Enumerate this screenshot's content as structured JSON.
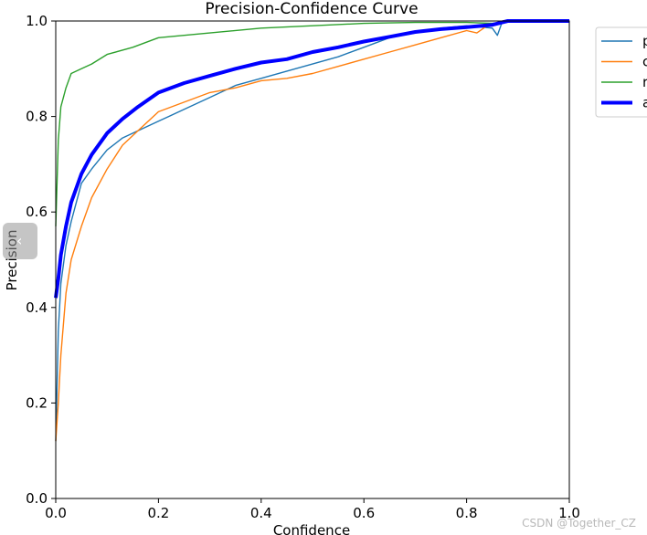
{
  "chart_data": {
    "type": "line",
    "title": "Precision-Confidence Curve",
    "xlabel": "Confidence",
    "ylabel": "Precision",
    "xlim": [
      0,
      1
    ],
    "ylim": [
      0,
      1
    ],
    "x_ticks": [
      "0.0",
      "0.2",
      "0.4",
      "0.6",
      "0.8",
      "1.0"
    ],
    "y_ticks": [
      "0.0",
      "0.2",
      "0.4",
      "0.6",
      "0.8",
      "1.0"
    ],
    "grid": false,
    "legend_position": "outside-top-right",
    "series": [
      {
        "name": "p",
        "color": "#1f77b4",
        "width": "thin",
        "points": [
          [
            0,
            0.12
          ],
          [
            0.005,
            0.35
          ],
          [
            0.01,
            0.45
          ],
          [
            0.02,
            0.53
          ],
          [
            0.03,
            0.58
          ],
          [
            0.05,
            0.66
          ],
          [
            0.07,
            0.69
          ],
          [
            0.1,
            0.73
          ],
          [
            0.13,
            0.755
          ],
          [
            0.16,
            0.77
          ],
          [
            0.2,
            0.79
          ],
          [
            0.25,
            0.815
          ],
          [
            0.3,
            0.84
          ],
          [
            0.35,
            0.865
          ],
          [
            0.4,
            0.88
          ],
          [
            0.45,
            0.895
          ],
          [
            0.5,
            0.91
          ],
          [
            0.55,
            0.925
          ],
          [
            0.6,
            0.945
          ],
          [
            0.65,
            0.965
          ],
          [
            0.7,
            0.975
          ],
          [
            0.75,
            0.985
          ],
          [
            0.8,
            0.99
          ],
          [
            0.85,
            0.985
          ],
          [
            0.86,
            0.97
          ],
          [
            0.87,
            1.0
          ],
          [
            1.0,
            1.0
          ]
        ]
      },
      {
        "name": "c",
        "color": "#ff7f0e",
        "width": "thin",
        "points": [
          [
            0,
            0.12
          ],
          [
            0.005,
            0.2
          ],
          [
            0.01,
            0.3
          ],
          [
            0.02,
            0.43
          ],
          [
            0.03,
            0.5
          ],
          [
            0.05,
            0.57
          ],
          [
            0.07,
            0.63
          ],
          [
            0.1,
            0.69
          ],
          [
            0.13,
            0.74
          ],
          [
            0.16,
            0.77
          ],
          [
            0.2,
            0.81
          ],
          [
            0.25,
            0.83
          ],
          [
            0.3,
            0.85
          ],
          [
            0.35,
            0.86
          ],
          [
            0.4,
            0.875
          ],
          [
            0.45,
            0.88
          ],
          [
            0.5,
            0.89
          ],
          [
            0.55,
            0.905
          ],
          [
            0.6,
            0.92
          ],
          [
            0.65,
            0.935
          ],
          [
            0.7,
            0.95
          ],
          [
            0.75,
            0.965
          ],
          [
            0.8,
            0.98
          ],
          [
            0.82,
            0.975
          ],
          [
            0.84,
            0.99
          ],
          [
            0.87,
            1.0
          ],
          [
            1.0,
            1.0
          ]
        ]
      },
      {
        "name": "r",
        "color": "#2ca02c",
        "width": "thin",
        "points": [
          [
            0,
            0.57
          ],
          [
            0.005,
            0.75
          ],
          [
            0.01,
            0.82
          ],
          [
            0.02,
            0.86
          ],
          [
            0.03,
            0.89
          ],
          [
            0.05,
            0.9
          ],
          [
            0.07,
            0.91
          ],
          [
            0.1,
            0.93
          ],
          [
            0.15,
            0.945
          ],
          [
            0.2,
            0.965
          ],
          [
            0.25,
            0.97
          ],
          [
            0.3,
            0.975
          ],
          [
            0.4,
            0.985
          ],
          [
            0.5,
            0.99
          ],
          [
            0.6,
            0.995
          ],
          [
            0.7,
            0.997
          ],
          [
            0.8,
            0.997
          ],
          [
            0.85,
            0.995
          ],
          [
            0.9,
            1.0
          ],
          [
            1.0,
            1.0
          ]
        ]
      },
      {
        "name": "a",
        "color": "#0000ff",
        "width": "thick",
        "points": [
          [
            0,
            0.42
          ],
          [
            0.005,
            0.46
          ],
          [
            0.01,
            0.51
          ],
          [
            0.02,
            0.57
          ],
          [
            0.03,
            0.62
          ],
          [
            0.05,
            0.68
          ],
          [
            0.07,
            0.72
          ],
          [
            0.1,
            0.765
          ],
          [
            0.13,
            0.795
          ],
          [
            0.16,
            0.82
          ],
          [
            0.2,
            0.85
          ],
          [
            0.25,
            0.87
          ],
          [
            0.3,
            0.885
          ],
          [
            0.35,
            0.9
          ],
          [
            0.4,
            0.913
          ],
          [
            0.45,
            0.92
          ],
          [
            0.5,
            0.935
          ],
          [
            0.55,
            0.945
          ],
          [
            0.6,
            0.957
          ],
          [
            0.65,
            0.967
          ],
          [
            0.7,
            0.977
          ],
          [
            0.75,
            0.983
          ],
          [
            0.8,
            0.987
          ],
          [
            0.85,
            0.992
          ],
          [
            0.88,
            1.0
          ],
          [
            1.0,
            1.0
          ]
        ]
      }
    ]
  },
  "watermark": "CSDN @Together_CZ"
}
